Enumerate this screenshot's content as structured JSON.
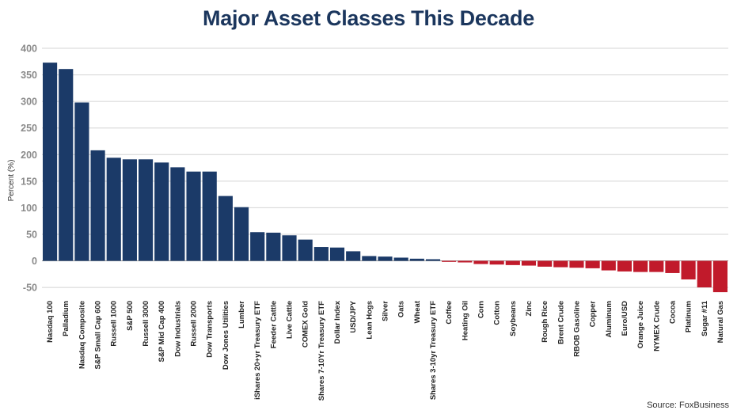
{
  "chart_data": {
    "type": "bar",
    "title": "Major Asset Classes This Decade",
    "ylabel": "Percent (%)",
    "xlabel": "",
    "ylim": [
      -60,
      400
    ],
    "yticks": [
      -50,
      0,
      50,
      100,
      150,
      200,
      250,
      300,
      350,
      400
    ],
    "grid": true,
    "categories": [
      "Nasdaq 100",
      "Palladium",
      "Nasdaq Composite",
      "S&P Small Cap 600",
      "Russell 1000",
      "S&P 500",
      "Russell 3000",
      "S&P Mid Cap 400",
      "Dow Industrials",
      "Russell 2000",
      "Dow Transports",
      "Dow Jones Utilities",
      "Lumber",
      "iShares 20+yr Treasury ETF",
      "Feeder Cattle",
      "Live Cattle",
      "COMEX Gold",
      "Shares 7-10Yr Treasury ETF",
      "Dollar Index",
      "USD/JPY",
      "Lean Hogs",
      "Silver",
      "Oats",
      "Wheat",
      "Shares 3-10yr Treasury ETF",
      "Coffee",
      "Heating Oil",
      "Corn",
      "Cotton",
      "Soybeans",
      "Zinc",
      "Rough Rice",
      "Brent Crude",
      "RBOB Gasoline",
      "Copper",
      "Aluminum",
      "Euro/USD",
      "Orange Juice",
      "NYMEX Crude",
      "Cocoa",
      "Platinum",
      "Sugar #11",
      "Natural Gas"
    ],
    "values": [
      373,
      361,
      298,
      208,
      194,
      191,
      191,
      185,
      176,
      168,
      168,
      122,
      101,
      54,
      53,
      48,
      40,
      26,
      25,
      18,
      9,
      8,
      6,
      4,
      3,
      -2,
      -3,
      -6,
      -7,
      -8,
      -9,
      -11,
      -12,
      -13,
      -14,
      -18,
      -20,
      -21,
      -21,
      -23,
      -35,
      -50,
      -59
    ],
    "positive_color": "#1b3a68",
    "negative_color": "#c11a2b"
  },
  "source": "Source: FoxBusiness"
}
